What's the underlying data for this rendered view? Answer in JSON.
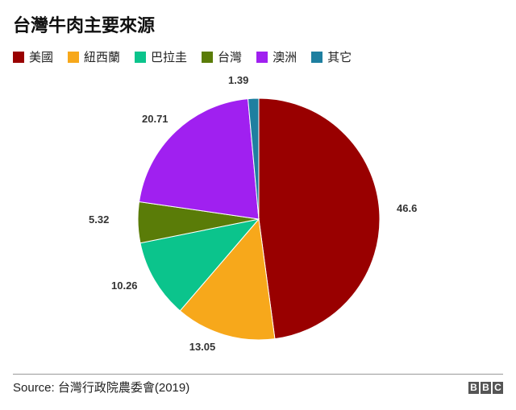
{
  "title": "台灣牛肉主要來源",
  "legend": [
    {
      "label": "美國",
      "color": "#990000"
    },
    {
      "label": "紐西蘭",
      "color": "#F7A81B"
    },
    {
      "label": "巴拉圭",
      "color": "#0BC48C"
    },
    {
      "label": "台灣",
      "color": "#5A7C08"
    },
    {
      "label": "澳洲",
      "color": "#A020F0"
    },
    {
      "label": "其它",
      "color": "#1E7FA0"
    }
  ],
  "chart_data": {
    "type": "pie",
    "title": "台灣牛肉主要來源",
    "start": "12 o'clock",
    "direction": "clockwise",
    "slices": [
      {
        "label": "美國",
        "value": 46.6,
        "display": "46.6",
        "color": "#990000"
      },
      {
        "label": "紐西蘭",
        "value": 13.05,
        "display": "13.05",
        "color": "#F7A81B"
      },
      {
        "label": "巴拉圭",
        "value": 10.26,
        "display": "10.26",
        "color": "#0BC48C"
      },
      {
        "label": "台灣",
        "value": 5.32,
        "display": "5.32",
        "color": "#5A7C08"
      },
      {
        "label": "澳洲",
        "value": 20.71,
        "display": "20.71",
        "color": "#A020F0"
      },
      {
        "label": "其它",
        "value": 1.39,
        "display": "1.39",
        "color": "#1E7FA0"
      }
    ]
  },
  "footer": {
    "source": "Source: 台灣行政院農委會(2019)",
    "logo": [
      "B",
      "B",
      "C"
    ]
  }
}
